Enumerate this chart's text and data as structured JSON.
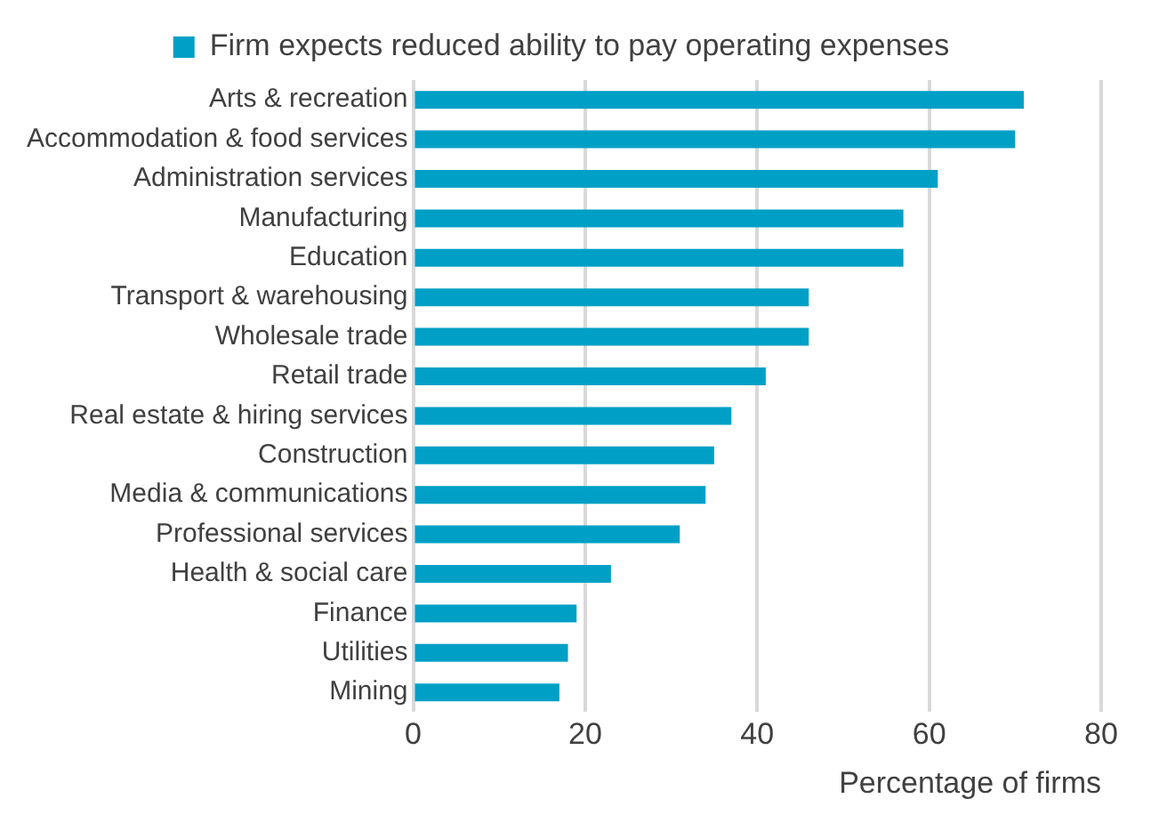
{
  "chart_data": {
    "type": "bar",
    "orientation": "horizontal",
    "xlabel": "Percentage of firms",
    "categories": [
      "Arts & recreation",
      "Accommodation & food services",
      "Administration services",
      "Manufacturing",
      "Education",
      "Transport & warehousing",
      "Wholesale trade",
      "Retail trade",
      "Real estate & hiring services",
      "Construction",
      "Media & communications",
      "Professional services",
      "Health & social care",
      "Finance",
      "Utilities",
      "Mining"
    ],
    "series": [
      {
        "name": "Firm expects reduced ability to pay operating expenses",
        "color": "#00a0c6",
        "values": [
          71,
          70,
          61,
          57,
          57,
          46,
          46,
          41,
          37,
          35,
          34,
          31,
          23,
          19,
          18,
          17
        ]
      }
    ],
    "xlim": [
      0,
      80
    ],
    "xticks": [
      0,
      20,
      40,
      60,
      80
    ],
    "grid": "x",
    "legend": "top"
  }
}
